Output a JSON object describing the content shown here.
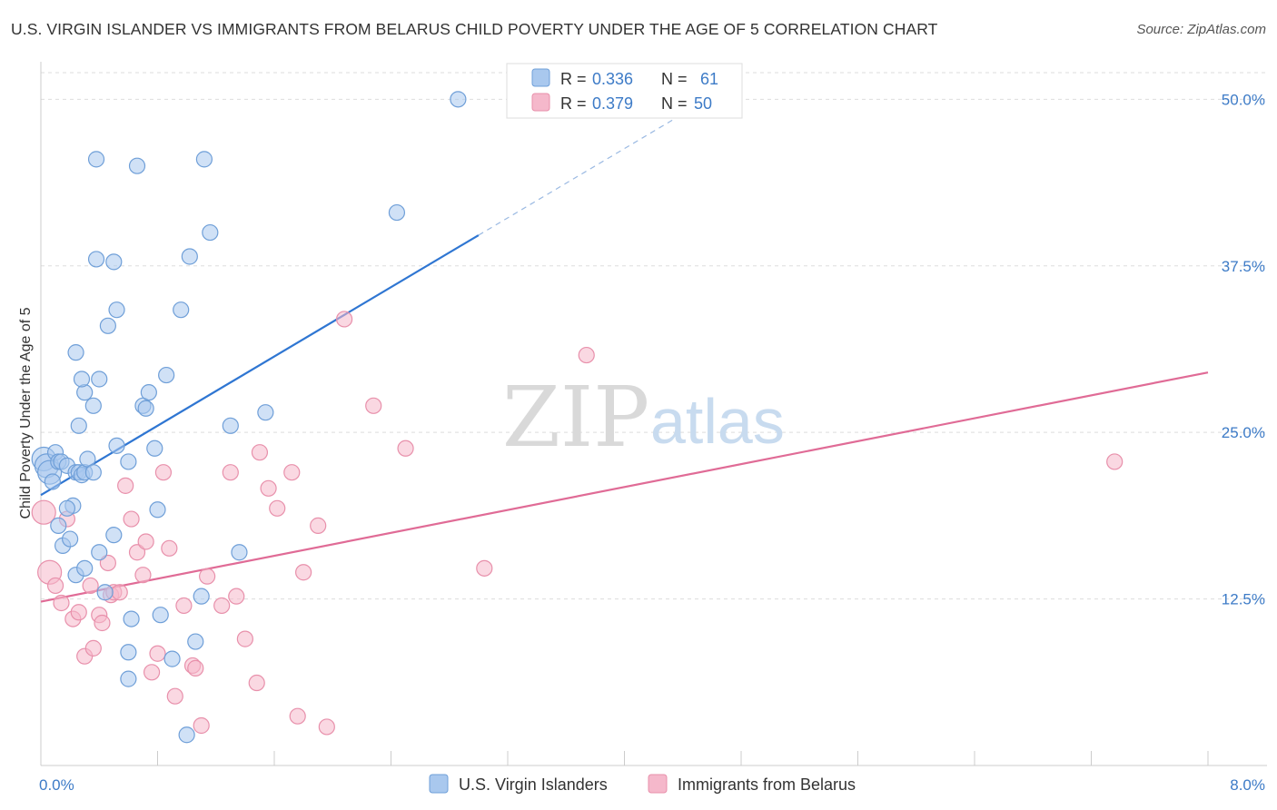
{
  "title": "U.S. VIRGIN ISLANDER VS IMMIGRANTS FROM BELARUS CHILD POVERTY UNDER THE AGE OF 5 CORRELATION CHART",
  "source": "Source: ZipAtlas.com",
  "watermark": {
    "part1": "ZIP",
    "part2": "atlas"
  },
  "colors": {
    "blue_fill": "#a9c8ee",
    "blue_stroke": "#6f9fd8",
    "blue_line": "#2f76d2",
    "pink_fill": "#f5b8cb",
    "pink_stroke": "#e890ab",
    "pink_line": "#e06b96",
    "tick_text": "#3d7bc7",
    "grid": "#dddddd"
  },
  "legend": {
    "rows": [
      {
        "r_label": "R = ",
        "r_value": "0.336",
        "n_label": "N = ",
        "n_value": "61"
      },
      {
        "r_label": "R = ",
        "r_value": "0.379",
        "n_label": "N = ",
        "n_value": "50"
      }
    ]
  },
  "chart_data": {
    "type": "scatter",
    "title": "U.S. VIRGIN ISLANDER VS IMMIGRANTS FROM BELARUS CHILD POVERTY UNDER THE AGE OF 5 CORRELATION CHART",
    "xlabel": "",
    "ylabel": "Child Poverty Under the Age of 5",
    "xlim": [
      0,
      8
    ],
    "ylim": [
      0,
      52
    ],
    "x_tick_labels": [
      "0.0%",
      "8.0%"
    ],
    "y_ticks": [
      12.5,
      25.0,
      37.5,
      50.0
    ],
    "y_tick_labels": [
      "12.5%",
      "25.0%",
      "37.5%",
      "50.0%"
    ],
    "series": [
      {
        "name": "U.S. Virgin Islanders",
        "color": "#a9c8ee",
        "points": [
          [
            0.02,
            23.0
          ],
          [
            0.04,
            22.5
          ],
          [
            0.06,
            22.0
          ],
          [
            0.08,
            21.3
          ],
          [
            0.1,
            23.5
          ],
          [
            0.12,
            22.8
          ],
          [
            0.14,
            22.8
          ],
          [
            0.15,
            16.5
          ],
          [
            0.18,
            22.5
          ],
          [
            0.2,
            17.0
          ],
          [
            0.22,
            19.5
          ],
          [
            0.24,
            22.0
          ],
          [
            0.26,
            22.0
          ],
          [
            0.28,
            21.8
          ],
          [
            0.3,
            22.0
          ],
          [
            0.32,
            23.0
          ],
          [
            0.12,
            18.0
          ],
          [
            0.18,
            19.3
          ],
          [
            0.24,
            14.3
          ],
          [
            0.3,
            14.8
          ],
          [
            0.26,
            25.5
          ],
          [
            0.36,
            22.0
          ],
          [
            0.4,
            16.0
          ],
          [
            0.44,
            13.0
          ],
          [
            0.5,
            17.3
          ],
          [
            0.52,
            24.0
          ],
          [
            0.6,
            22.8
          ],
          [
            0.62,
            11.0
          ],
          [
            0.7,
            27.0
          ],
          [
            0.72,
            26.8
          ],
          [
            0.74,
            28.0
          ],
          [
            0.78,
            23.8
          ],
          [
            0.8,
            19.2
          ],
          [
            0.82,
            11.3
          ],
          [
            0.86,
            29.3
          ],
          [
            0.9,
            8.0
          ],
          [
            0.96,
            34.2
          ],
          [
            1.02,
            38.2
          ],
          [
            1.06,
            9.3
          ],
          [
            1.1,
            12.7
          ],
          [
            1.12,
            45.5
          ],
          [
            1.16,
            40.0
          ],
          [
            0.24,
            31.0
          ],
          [
            0.36,
            27.0
          ],
          [
            0.38,
            45.5
          ],
          [
            0.46,
            33.0
          ],
          [
            0.5,
            37.8
          ],
          [
            0.52,
            34.2
          ],
          [
            0.6,
            8.5
          ],
          [
            0.66,
            45.0
          ],
          [
            1.3,
            25.5
          ],
          [
            1.36,
            16.0
          ],
          [
            1.54,
            26.5
          ],
          [
            0.6,
            6.5
          ],
          [
            1.0,
            2.3
          ],
          [
            0.38,
            38.0
          ],
          [
            2.44,
            41.5
          ],
          [
            2.86,
            50.0
          ],
          [
            0.4,
            29.0
          ],
          [
            0.3,
            28.0
          ],
          [
            0.28,
            29.0
          ]
        ]
      },
      {
        "name": "Immigrants from Belarus",
        "color": "#f5b8cb",
        "points": [
          [
            0.02,
            19.0
          ],
          [
            0.06,
            14.5
          ],
          [
            0.1,
            13.5
          ],
          [
            0.14,
            12.2
          ],
          [
            0.18,
            18.5
          ],
          [
            0.22,
            11.0
          ],
          [
            0.26,
            11.5
          ],
          [
            0.3,
            8.2
          ],
          [
            0.34,
            13.5
          ],
          [
            0.36,
            8.8
          ],
          [
            0.4,
            11.3
          ],
          [
            0.42,
            10.7
          ],
          [
            0.46,
            15.2
          ],
          [
            0.48,
            12.8
          ],
          [
            0.5,
            13.0
          ],
          [
            0.54,
            13.0
          ],
          [
            0.58,
            21.0
          ],
          [
            0.62,
            18.5
          ],
          [
            0.66,
            16.0
          ],
          [
            0.7,
            14.3
          ],
          [
            0.72,
            16.8
          ],
          [
            0.76,
            7.0
          ],
          [
            0.8,
            8.4
          ],
          [
            0.84,
            22.0
          ],
          [
            0.88,
            16.3
          ],
          [
            0.92,
            5.2
          ],
          [
            0.98,
            12.0
          ],
          [
            1.04,
            7.5
          ],
          [
            1.06,
            7.3
          ],
          [
            1.1,
            3.0
          ],
          [
            1.14,
            14.2
          ],
          [
            1.24,
            12.0
          ],
          [
            1.3,
            22.0
          ],
          [
            1.34,
            12.7
          ],
          [
            1.4,
            9.5
          ],
          [
            1.48,
            6.2
          ],
          [
            1.5,
            23.5
          ],
          [
            1.56,
            20.8
          ],
          [
            1.62,
            19.3
          ],
          [
            1.72,
            22.0
          ],
          [
            1.76,
            3.7
          ],
          [
            1.8,
            14.5
          ],
          [
            1.9,
            18.0
          ],
          [
            1.96,
            2.9
          ],
          [
            2.08,
            33.5
          ],
          [
            2.28,
            27.0
          ],
          [
            2.5,
            23.8
          ],
          [
            3.04,
            14.8
          ],
          [
            3.74,
            30.8
          ],
          [
            7.36,
            22.8
          ]
        ]
      }
    ],
    "trendlines": [
      {
        "series": "U.S. Virgin Islanders",
        "x0": 0.0,
        "y0": 20.3,
        "x1": 3.0,
        "y1": 39.8,
        "dashed_to_x": 4.6,
        "dashed_to_y": 50.2
      },
      {
        "series": "Immigrants from Belarus",
        "x0": 0.0,
        "y0": 12.3,
        "x1": 8.0,
        "y1": 29.5
      }
    ]
  }
}
